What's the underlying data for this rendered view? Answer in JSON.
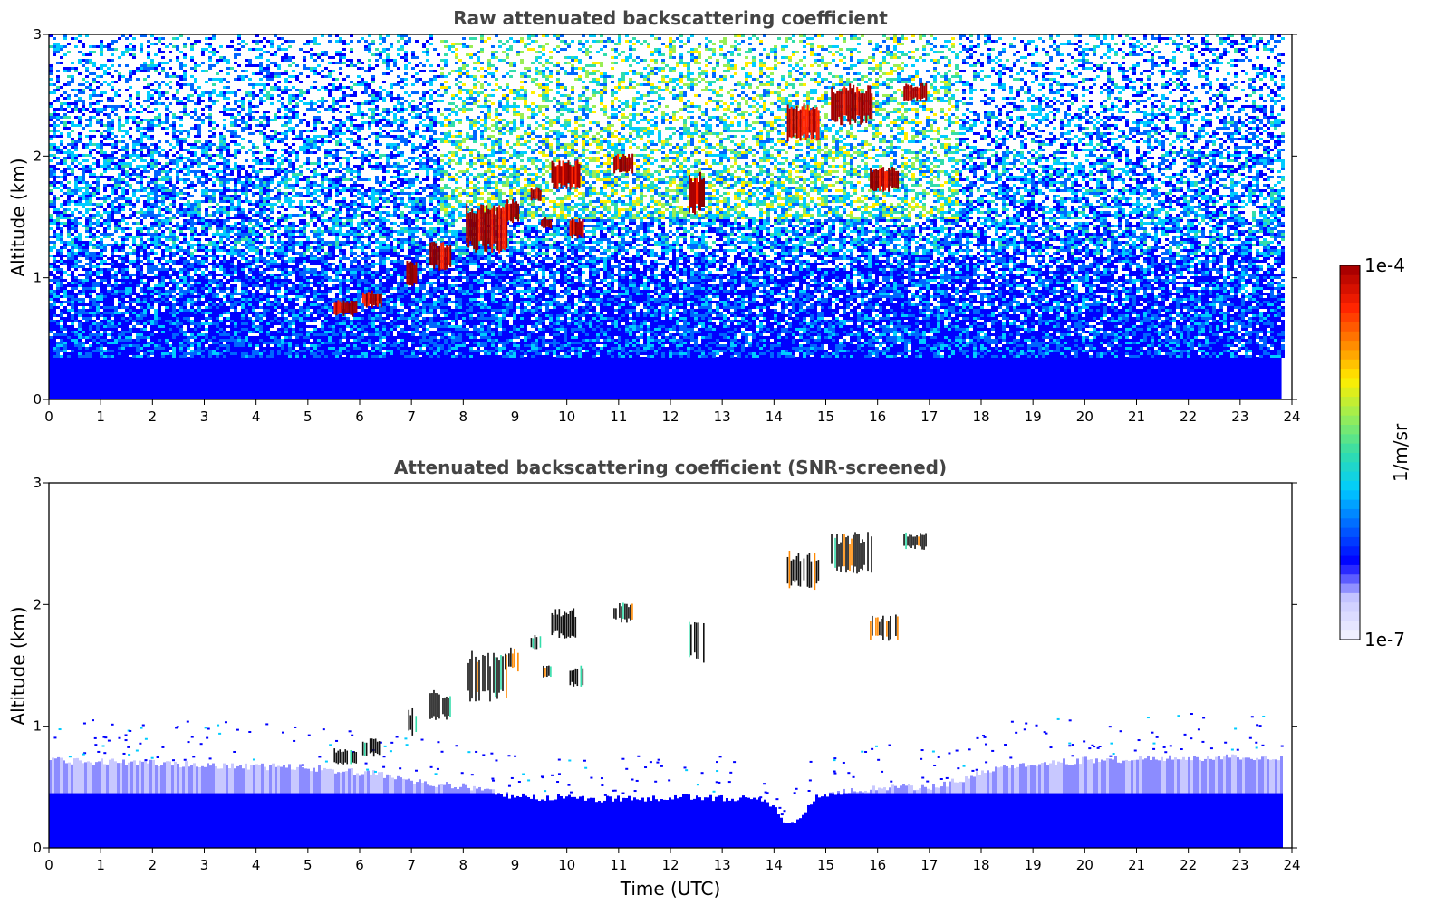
{
  "chart_data": [
    {
      "type": "heatmap",
      "title": "Raw attenuated backscattering coefficient",
      "xlabel": "",
      "ylabel": "Altitude (km)",
      "xlim": [
        0,
        24
      ],
      "ylim": [
        0,
        3
      ],
      "x_ticks": [
        "0",
        "1",
        "2",
        "3",
        "4",
        "5",
        "6",
        "7",
        "8",
        "9",
        "10",
        "11",
        "12",
        "13",
        "14",
        "15",
        "16",
        "17",
        "18",
        "19",
        "20",
        "21",
        "22",
        "23",
        "24"
      ],
      "y_ticks": [
        "0",
        "1",
        "2",
        "3"
      ],
      "data_end_time": 23.8,
      "background": {
        "surface_layer_top_km": 0.35,
        "noise_top_km": 3.0,
        "enhanced_noise_window_utc": [
          7.5,
          17.5
        ]
      },
      "features": [
        {
          "t_start": 5.5,
          "t_end": 5.95,
          "alt_bottom": 0.68,
          "alt_top": 0.82
        },
        {
          "t_start": 6.05,
          "t_end": 6.4,
          "alt_bottom": 0.75,
          "alt_top": 0.9
        },
        {
          "t_start": 6.9,
          "t_end": 7.1,
          "alt_bottom": 0.92,
          "alt_top": 1.15
        },
        {
          "t_start": 7.35,
          "t_end": 7.75,
          "alt_bottom": 1.05,
          "alt_top": 1.3
        },
        {
          "t_start": 8.05,
          "t_end": 8.85,
          "alt_bottom": 1.2,
          "alt_top": 1.62
        },
        {
          "t_start": 8.8,
          "t_end": 9.05,
          "alt_bottom": 1.45,
          "alt_top": 1.65
        },
        {
          "t_start": 9.3,
          "t_end": 9.5,
          "alt_bottom": 1.62,
          "alt_top": 1.75
        },
        {
          "t_start": 9.5,
          "t_end": 9.7,
          "alt_bottom": 1.4,
          "alt_top": 1.5
        },
        {
          "t_start": 9.7,
          "t_end": 10.25,
          "alt_bottom": 1.72,
          "alt_top": 1.97
        },
        {
          "t_start": 10.05,
          "t_end": 10.3,
          "alt_bottom": 1.32,
          "alt_top": 1.5
        },
        {
          "t_start": 10.9,
          "t_end": 11.25,
          "alt_bottom": 1.85,
          "alt_top": 2.02
        },
        {
          "t_start": 12.35,
          "t_end": 12.65,
          "alt_bottom": 1.52,
          "alt_top": 1.87
        },
        {
          "t_start": 14.25,
          "t_end": 14.85,
          "alt_bottom": 2.12,
          "alt_top": 2.45
        },
        {
          "t_start": 15.1,
          "t_end": 15.9,
          "alt_bottom": 2.25,
          "alt_top": 2.6
        },
        {
          "t_start": 15.85,
          "t_end": 16.4,
          "alt_bottom": 1.7,
          "alt_top": 1.92
        },
        {
          "t_start": 16.5,
          "t_end": 16.95,
          "alt_bottom": 2.45,
          "alt_top": 2.6
        }
      ]
    },
    {
      "type": "heatmap",
      "title": "Attenuated backscattering coefficient (SNR-screened)",
      "xlabel": "Time (UTC)",
      "ylabel": "Altitude (km)",
      "xlim": [
        0,
        24
      ],
      "ylim": [
        0,
        3
      ],
      "x_ticks": [
        "0",
        "1",
        "2",
        "3",
        "4",
        "5",
        "6",
        "7",
        "8",
        "9",
        "10",
        "11",
        "12",
        "13",
        "14",
        "15",
        "16",
        "17",
        "18",
        "19",
        "20",
        "21",
        "22",
        "23",
        "24"
      ],
      "y_ticks": [
        "0",
        "1",
        "2",
        "3"
      ],
      "data_end_time": 23.8,
      "boundary_layer_top_km": [
        [
          0,
          0.72
        ],
        [
          3,
          0.68
        ],
        [
          5,
          0.66
        ],
        [
          6.5,
          0.6
        ],
        [
          7,
          0.55
        ],
        [
          8,
          0.5
        ],
        [
          9,
          0.42
        ],
        [
          11,
          0.4
        ],
        [
          12.5,
          0.42
        ],
        [
          13.8,
          0.4
        ],
        [
          14.3,
          0.18
        ],
        [
          14.8,
          0.42
        ],
        [
          16,
          0.5
        ],
        [
          17,
          0.5
        ],
        [
          17.5,
          0.55
        ],
        [
          18.5,
          0.68
        ],
        [
          20,
          0.72
        ],
        [
          22,
          0.74
        ],
        [
          23.8,
          0.75
        ]
      ],
      "features": [
        {
          "t_start": 5.5,
          "t_end": 5.95,
          "alt_bottom": 0.68,
          "alt_top": 0.82
        },
        {
          "t_start": 6.05,
          "t_end": 6.4,
          "alt_bottom": 0.75,
          "alt_top": 0.9
        },
        {
          "t_start": 6.9,
          "t_end": 7.1,
          "alt_bottom": 0.92,
          "alt_top": 1.15
        },
        {
          "t_start": 7.35,
          "t_end": 7.75,
          "alt_bottom": 1.05,
          "alt_top": 1.3
        },
        {
          "t_start": 8.05,
          "t_end": 8.85,
          "alt_bottom": 1.2,
          "alt_top": 1.62
        },
        {
          "t_start": 8.8,
          "t_end": 9.05,
          "alt_bottom": 1.45,
          "alt_top": 1.65
        },
        {
          "t_start": 9.3,
          "t_end": 9.5,
          "alt_bottom": 1.62,
          "alt_top": 1.75
        },
        {
          "t_start": 9.5,
          "t_end": 9.7,
          "alt_bottom": 1.4,
          "alt_top": 1.5
        },
        {
          "t_start": 9.7,
          "t_end": 10.25,
          "alt_bottom": 1.72,
          "alt_top": 1.97
        },
        {
          "t_start": 10.05,
          "t_end": 10.3,
          "alt_bottom": 1.32,
          "alt_top": 1.5
        },
        {
          "t_start": 10.9,
          "t_end": 11.25,
          "alt_bottom": 1.85,
          "alt_top": 2.02
        },
        {
          "t_start": 12.35,
          "t_end": 12.65,
          "alt_bottom": 1.52,
          "alt_top": 1.87
        },
        {
          "t_start": 14.25,
          "t_end": 14.85,
          "alt_bottom": 2.12,
          "alt_top": 2.45
        },
        {
          "t_start": 15.1,
          "t_end": 15.9,
          "alt_bottom": 2.25,
          "alt_top": 2.6
        },
        {
          "t_start": 15.85,
          "t_end": 16.4,
          "alt_bottom": 1.7,
          "alt_top": 1.92
        },
        {
          "t_start": 16.5,
          "t_end": 16.95,
          "alt_bottom": 2.45,
          "alt_top": 2.6
        }
      ]
    }
  ],
  "colorbar": {
    "label": "1/m/sr",
    "max_label": "1e-4",
    "min_label": "1e-7",
    "scale": "log",
    "colormap": [
      "#f0f0ff",
      "#c8c8ff",
      "#0000ff",
      "#0066ff",
      "#00ccff",
      "#33ddaa",
      "#99ee55",
      "#ffee00",
      "#ff8800",
      "#ff2200",
      "#aa0000"
    ]
  },
  "colors": {
    "axis": "#000000",
    "title": "#444444",
    "cloud_screened": "#111111"
  }
}
